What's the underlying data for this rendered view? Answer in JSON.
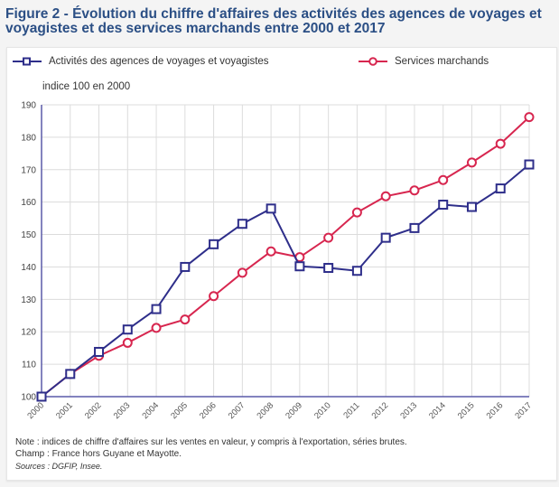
{
  "title": "Figure 2 - Évolution du chiffre d'affaires des activités des agences de voyages et voyagistes et des services marchands entre 2000 et 2017",
  "chart_data": {
    "type": "line",
    "title": "Figure 2 - Évolution du chiffre d'affaires des activités des agences de voyages et voyagistes et des services marchands entre 2000 et 2017",
    "ylabel": "indice 100 en 2000",
    "xlabel": "",
    "x": [
      "2000",
      "2001",
      "2002",
      "2003",
      "2004",
      "2005",
      "2006",
      "2007",
      "2008",
      "2009",
      "2010",
      "2011",
      "2012",
      "2013",
      "2014",
      "2015",
      "2016",
      "2017"
    ],
    "ylim": [
      100,
      190
    ],
    "yticks": [
      "100",
      "110",
      "120",
      "130",
      "140",
      "150",
      "160",
      "170",
      "180",
      "190"
    ],
    "grid": true,
    "legend_position": "top",
    "series": [
      {
        "name": "Activités des agences de voyages et voyagistes",
        "color": "#2e2e8a",
        "marker": "square",
        "values": [
          100,
          107,
          113.8,
          120.7,
          127,
          140,
          147,
          153.3,
          158,
          140.2,
          139.7,
          138.8,
          149,
          152,
          159.2,
          158.5,
          164.2,
          171.6
        ]
      },
      {
        "name": "Services marchands",
        "color": "#d7264f",
        "marker": "circle",
        "values": [
          100,
          107,
          112.6,
          116.6,
          121.2,
          123.8,
          131,
          138.2,
          144.8,
          143,
          149,
          156.8,
          161.8,
          163.6,
          166.8,
          172.2,
          178,
          186.2
        ]
      }
    ]
  },
  "notes": {
    "note": "Note : indices de chiffre d'affaires sur les ventes en valeur, y compris à l'exportation, séries brutes.",
    "champ": "Champ : France hors Guyane et Mayotte.",
    "sources": "Sources : DGFIP, Insee."
  }
}
